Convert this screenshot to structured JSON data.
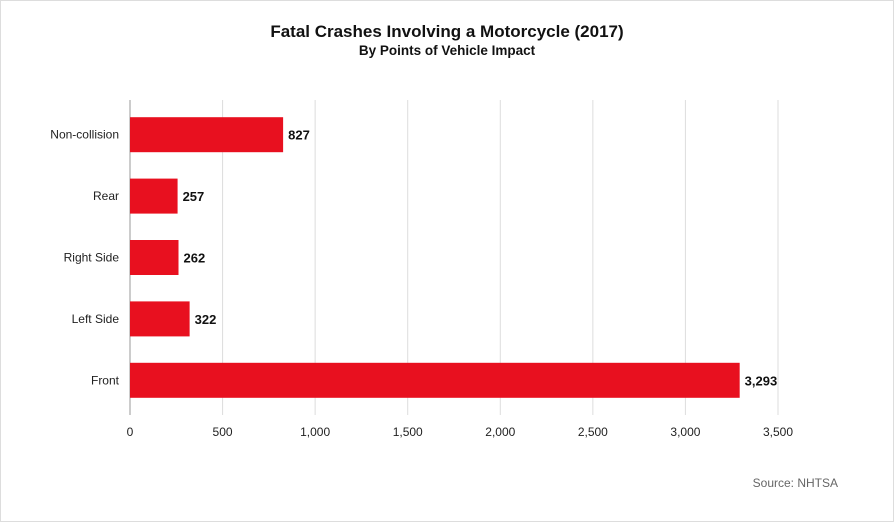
{
  "chart_data": {
    "type": "bar",
    "orientation": "horizontal",
    "title": "Fatal Crashes Involving a Motorcycle (2017)",
    "subtitle": "By Points of Vehicle Impact",
    "categories": [
      "Non-collision",
      "Rear",
      "Right Side",
      "Left Side",
      "Front"
    ],
    "values": [
      827,
      257,
      262,
      322,
      3293
    ],
    "data_labels": [
      "827",
      "257",
      "262",
      "322",
      "3,293"
    ],
    "xlim": [
      0,
      3500
    ],
    "x_ticks": [
      0,
      500,
      1000,
      1500,
      2000,
      2500,
      3000,
      3500
    ],
    "x_tick_labels": [
      "0",
      "500",
      "1,000",
      "1,500",
      "2,000",
      "2,500",
      "3,000",
      "3,500"
    ],
    "xlabel": "",
    "ylabel": "",
    "grid": "vertical",
    "bar_color": "#e8101f",
    "source": "Source: NHTSA"
  }
}
